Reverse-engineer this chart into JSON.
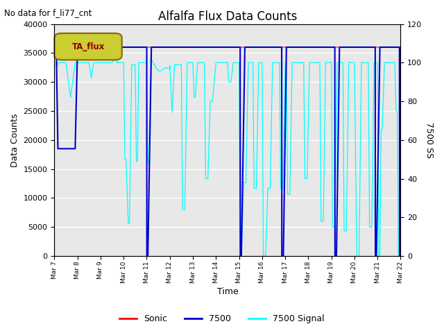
{
  "title": "Alfalfa Flux Data Counts",
  "top_left_text": "No data for f_li77_cnt",
  "xlabel": "Time",
  "ylabel_left": "Data Counts",
  "ylabel_right": "7500 SS",
  "ylim_left": [
    0,
    40000
  ],
  "ylim_right": [
    0,
    120
  ],
  "legend_box_label": "TA_flux",
  "sonic_color": "red",
  "blue_color": "#0000cc",
  "cyan_color": "cyan",
  "bg_color": "#e8e8e8",
  "grid_color": "white",
  "x_tick_labels": [
    "Mar 7",
    "Mar 8",
    "Mar 9",
    "Mar 10",
    "Mar 11",
    "Mar 12",
    "Mar 13",
    "Mar 14",
    "Mar 15",
    "Mar 16",
    "Mar 17",
    "Mar 18",
    "Mar 19",
    "Mar 20",
    "Mar 21",
    "Mar 22"
  ],
  "x_tick_positions": [
    0,
    1,
    2,
    3,
    4,
    5,
    6,
    7,
    8,
    9,
    10,
    11,
    12,
    13,
    14,
    15
  ]
}
